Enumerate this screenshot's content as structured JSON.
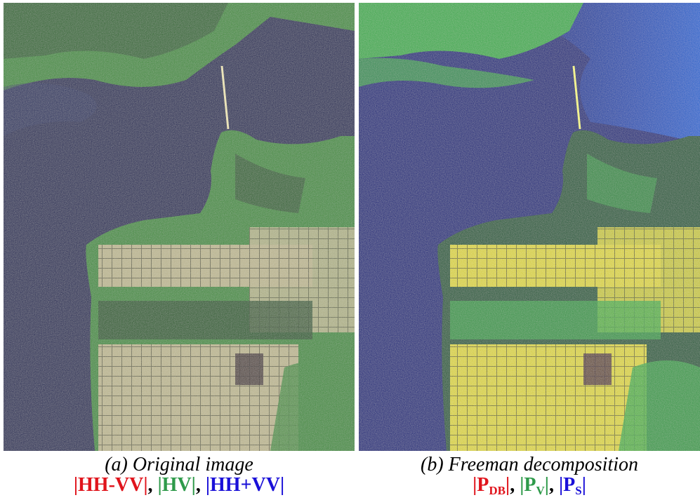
{
  "panel_a": {
    "caption": "(a) Original image",
    "channels": [
      {
        "text": "|HH-VV|",
        "color": "#e0141c"
      },
      {
        "text": "|HV|",
        "color": "#2e9a4a"
      },
      {
        "text": "|HH+VV|",
        "color": "#1a10d8"
      }
    ],
    "palette": {
      "water": "#1d2354",
      "water_light": "#2e3a6a",
      "land": "#3f8a3a",
      "land_dark": "#1f4a22",
      "urban": "#b9b38e",
      "urban_grid": "#6c6b4e"
    }
  },
  "panel_b": {
    "caption": "(b) Freeman decomposition",
    "channels": [
      {
        "text": "|P",
        "sub": "DB",
        "close": "|",
        "color": "#e0141c"
      },
      {
        "text": "|P",
        "sub": "V",
        "close": "|",
        "color": "#2e9a4a"
      },
      {
        "text": "|P",
        "sub": "S",
        "close": "|",
        "color": "#1a10d8"
      }
    ],
    "palette": {
      "water": "#0c1f7a",
      "water_light": "#1a6ed8",
      "land": "#3aa84a",
      "land_dark": "#1d5a36",
      "urban": "#d6cf3a",
      "urban_grid": "#7b7a24"
    }
  },
  "separator": ", "
}
